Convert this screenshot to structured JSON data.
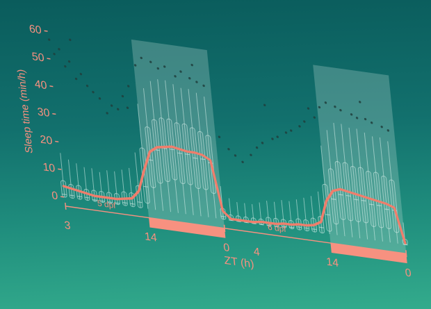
{
  "style": {
    "salmon_text": "#f79180",
    "line_color": "#ef7e6c",
    "bar_color": "#f79180",
    "band_fill": "rgba(198,224,218,0.27)",
    "box_stroke": "rgba(220,242,236,0.55)",
    "box_fill": "rgba(255,255,255,0.05)",
    "dot_fill": "rgba(32,64,61,0.85)",
    "bg_top": "#0a5c5c",
    "bg_bottom": "#33ab8c"
  },
  "chart_data": {
    "type": "line",
    "title": "",
    "xlabel": "ZT (h)",
    "ylabel": "Sleep time (min/h)",
    "ylim": [
      0,
      62
    ],
    "yticks": [
      0,
      10,
      20,
      30,
      40,
      50,
      60
    ],
    "x_hours_span": 45,
    "xticks": [
      {
        "t": 0,
        "label": "3"
      },
      {
        "t": 11,
        "label": "14"
      },
      {
        "t": 21,
        "label": "0"
      },
      {
        "t": 25,
        "label": "4"
      },
      {
        "t": 35,
        "label": "14"
      },
      {
        "t": 45,
        "label": "0"
      }
    ],
    "dark_bands": [
      {
        "t0": 11,
        "t1": 21
      },
      {
        "t0": 35,
        "t1": 45
      }
    ],
    "segments": [
      {
        "label": "5 dpf",
        "t0": 0,
        "t1": 21,
        "label_center_t": 5.5
      },
      {
        "label": "6 dpf",
        "t0": 21,
        "t1": 45,
        "label_center_t": 28
      }
    ],
    "series": [
      {
        "name": "mean sleep time",
        "values": [
          4,
          3.5,
          3,
          2.5,
          2,
          2,
          2,
          2,
          2.5,
          3,
          6,
          14,
          21,
          23,
          23.5,
          24,
          23.5,
          23,
          23,
          22.5,
          21,
          3,
          0.5,
          0.5,
          0.5,
          0.5,
          1,
          1,
          1,
          1.5,
          1.5,
          2,
          2,
          2.5,
          4,
          12,
          16,
          17,
          16.5,
          16,
          15.5,
          15,
          14.5,
          14,
          13,
          0.5
        ]
      }
    ],
    "boxplots": {
      "lo": 0,
      "median": [
        1,
        1,
        1,
        1,
        0.5,
        0.5,
        0.5,
        0.5,
        1,
        1,
        2,
        8,
        18,
        22,
        23,
        23,
        22,
        22,
        21,
        21,
        20,
        1,
        0,
        0,
        0,
        0,
        0,
        0,
        0,
        0.5,
        0.5,
        1,
        1,
        1,
        2,
        7,
        13,
        15,
        15,
        14,
        14,
        13,
        13,
        12,
        12,
        0
      ],
      "q1": [
        0,
        0,
        0,
        0,
        0,
        0,
        0,
        0,
        0,
        0,
        0,
        2,
        8,
        10,
        11,
        12,
        11,
        11,
        10,
        10,
        9,
        0,
        0,
        0,
        0,
        0,
        0,
        0,
        0,
        0,
        0,
        0,
        0,
        0,
        0,
        1,
        4,
        6,
        6,
        6,
        6,
        5,
        5,
        5,
        4,
        0
      ],
      "q3": [
        6,
        5,
        5,
        4,
        4,
        4,
        4,
        4,
        5,
        5,
        8,
        22,
        30,
        33,
        34,
        34,
        33,
        33,
        32,
        31,
        30,
        4,
        2,
        2,
        2,
        2,
        2,
        3,
        3,
        3,
        3,
        4,
        4,
        5,
        6,
        18,
        24,
        27,
        27,
        26,
        26,
        25,
        25,
        24,
        23,
        2
      ],
      "hi": [
        16,
        14,
        13,
        12,
        12,
        11,
        12,
        12,
        13,
        14,
        20,
        38,
        44,
        47,
        48,
        48,
        47,
        46,
        46,
        45,
        44,
        12,
        8,
        7,
        7,
        7,
        8,
        9,
        9,
        10,
        10,
        11,
        12,
        13,
        15,
        32,
        38,
        41,
        41,
        40,
        40,
        39,
        38,
        38,
        37,
        8
      ]
    },
    "outliers": [
      [
        0,
        57
      ],
      [
        0.5,
        52
      ],
      [
        1.2,
        54
      ],
      [
        1.8,
        48
      ],
      [
        2.4,
        50
      ],
      [
        2.8,
        58
      ],
      [
        3.1,
        44
      ],
      [
        3.8,
        46
      ],
      [
        4.5,
        42
      ],
      [
        5.2,
        40
      ],
      [
        6,
        38
      ],
      [
        6.8,
        33
      ],
      [
        7.5,
        36
      ],
      [
        8.3,
        35
      ],
      [
        9.1,
        40
      ],
      [
        9.6,
        36
      ],
      [
        10,
        44
      ],
      [
        11.2,
        52
      ],
      [
        12.1,
        55
      ],
      [
        13.3,
        54
      ],
      [
        14.2,
        52
      ],
      [
        15.1,
        53
      ],
      [
        16.4,
        50
      ],
      [
        17.2,
        52
      ],
      [
        18.3,
        50
      ],
      [
        18.8,
        55
      ],
      [
        19.2,
        49
      ],
      [
        20.1,
        48
      ],
      [
        21.5,
        30
      ],
      [
        22.6,
        26
      ],
      [
        23.4,
        24
      ],
      [
        24.3,
        22
      ],
      [
        25.5,
        25
      ],
      [
        26.4,
        28
      ],
      [
        27.2,
        30
      ],
      [
        28,
        44
      ],
      [
        28.6,
        32
      ],
      [
        29.3,
        33
      ],
      [
        30.5,
        35
      ],
      [
        31.2,
        36
      ],
      [
        32.4,
        38
      ],
      [
        33.1,
        40
      ],
      [
        33.8,
        45
      ],
      [
        34.5,
        42
      ],
      [
        35.3,
        46
      ],
      [
        36.2,
        48
      ],
      [
        37.4,
        47
      ],
      [
        38.1,
        46
      ],
      [
        39.5,
        45
      ],
      [
        40.2,
        44
      ],
      [
        40.8,
        50
      ],
      [
        41.3,
        44
      ],
      [
        42.1,
        43
      ],
      [
        43.4,
        42
      ],
      [
        44.2,
        41
      ]
    ]
  }
}
